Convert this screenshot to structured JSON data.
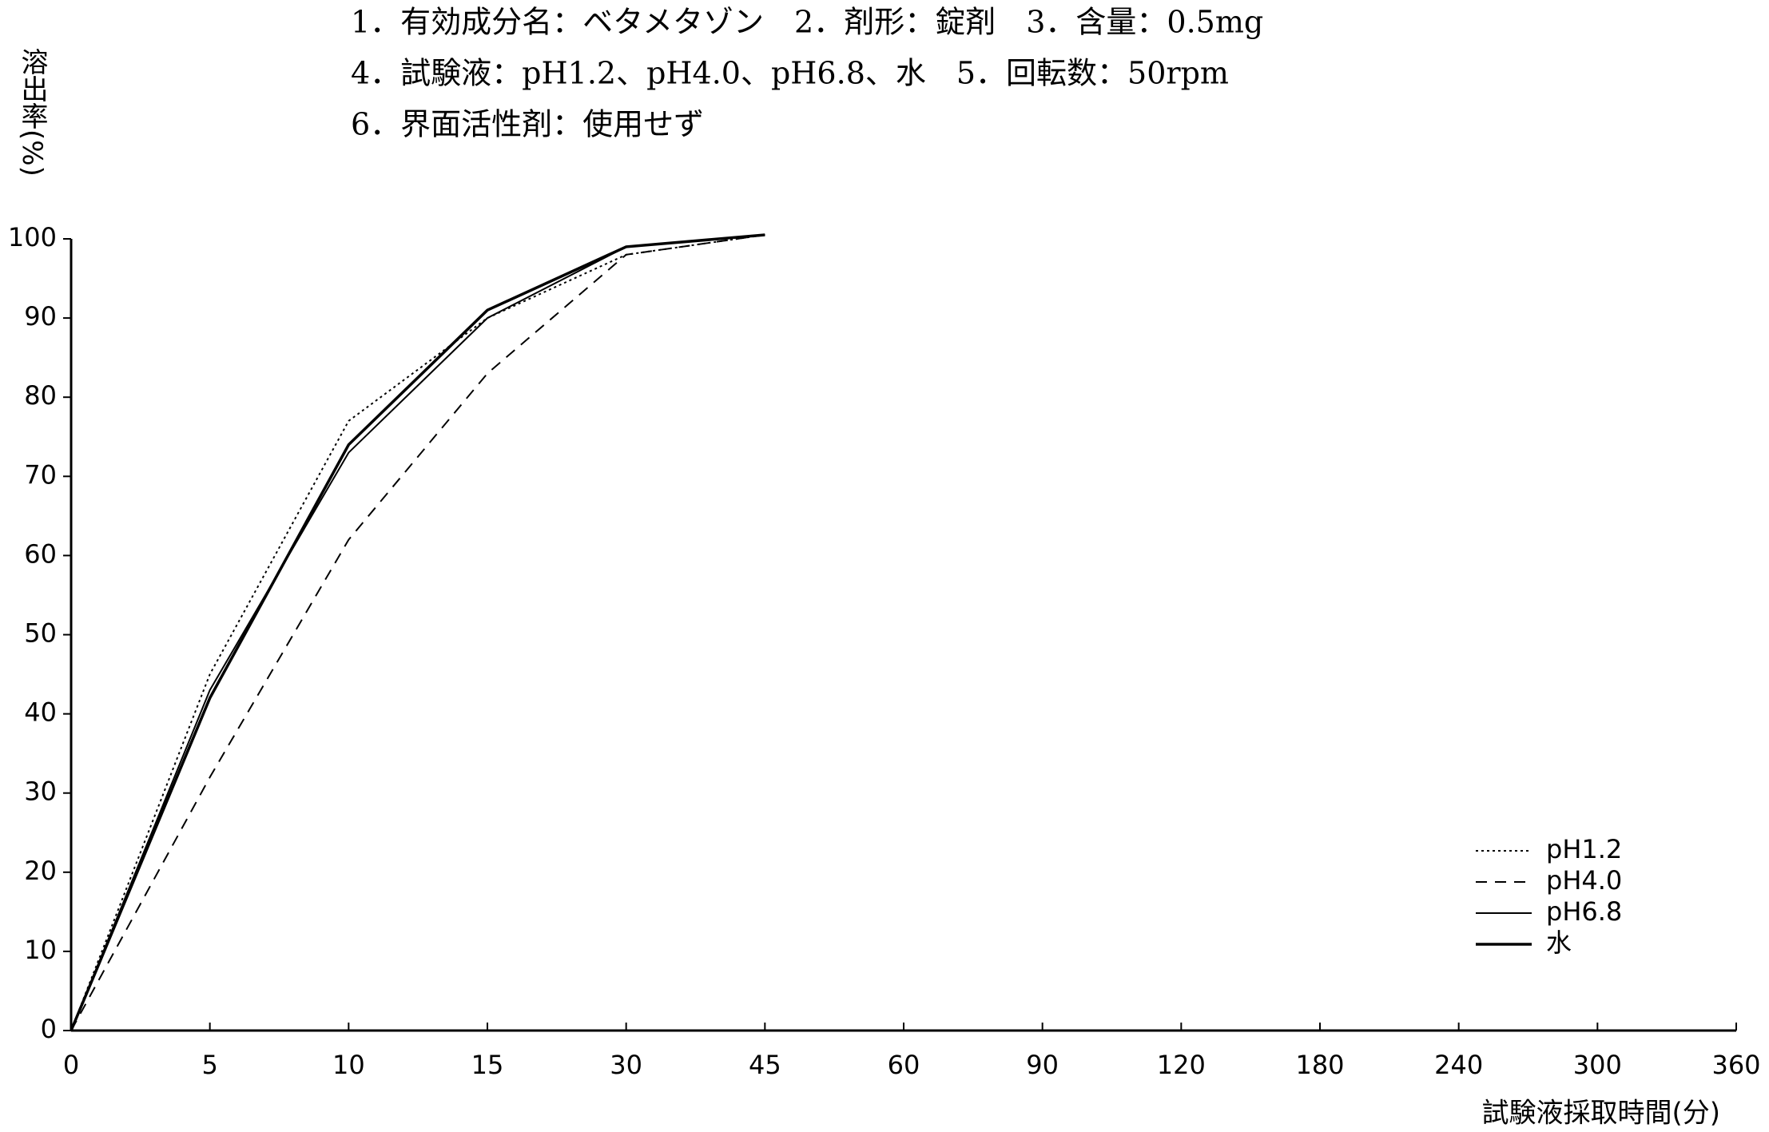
{
  "chart_data": {
    "type": "line",
    "title_lines": [
      "1．有効成分名：ベタメタゾン　2．剤形：錠剤　3．含量：0.5mg",
      "4．試験液：pH1.2、pH4.0、pH6.8、水　5．回転数：50rpm",
      "6．界面活性剤：使用せず"
    ],
    "ylabel": "溶出率(%)",
    "xlabel": "試験液採取時間(分)",
    "categories": [
      "0",
      "5",
      "10",
      "15",
      "30",
      "45",
      "60",
      "90",
      "120",
      "180",
      "240",
      "300",
      "360"
    ],
    "series": [
      {
        "name": "pH1.2",
        "color": "#000000",
        "dash": "dotted",
        "width": 2,
        "values": [
          0,
          45,
          77,
          90,
          98,
          100.5,
          null,
          null,
          null,
          null,
          null,
          null,
          null
        ]
      },
      {
        "name": "pH4.0",
        "color": "#000000",
        "dash": "dashed",
        "width": 2,
        "values": [
          0,
          32,
          62,
          83,
          98,
          100.5,
          null,
          null,
          null,
          null,
          null,
          null,
          null
        ]
      },
      {
        "name": "pH6.8",
        "color": "#000000",
        "dash": "solid",
        "width": 2,
        "values": [
          0,
          43,
          73,
          90,
          99,
          100.5,
          null,
          null,
          null,
          null,
          null,
          null,
          null
        ]
      },
      {
        "name": "水",
        "color": "#000000",
        "dash": "solid",
        "width": 3.5,
        "values": [
          0,
          42,
          74,
          91,
          99,
          100.5,
          null,
          null,
          null,
          null,
          null,
          null,
          null
        ]
      }
    ],
    "ylim": [
      0,
      100
    ],
    "yticks": [
      0,
      10,
      20,
      30,
      40,
      50,
      60,
      70,
      80,
      90,
      100
    ],
    "grid": false,
    "legend": "lower right"
  }
}
